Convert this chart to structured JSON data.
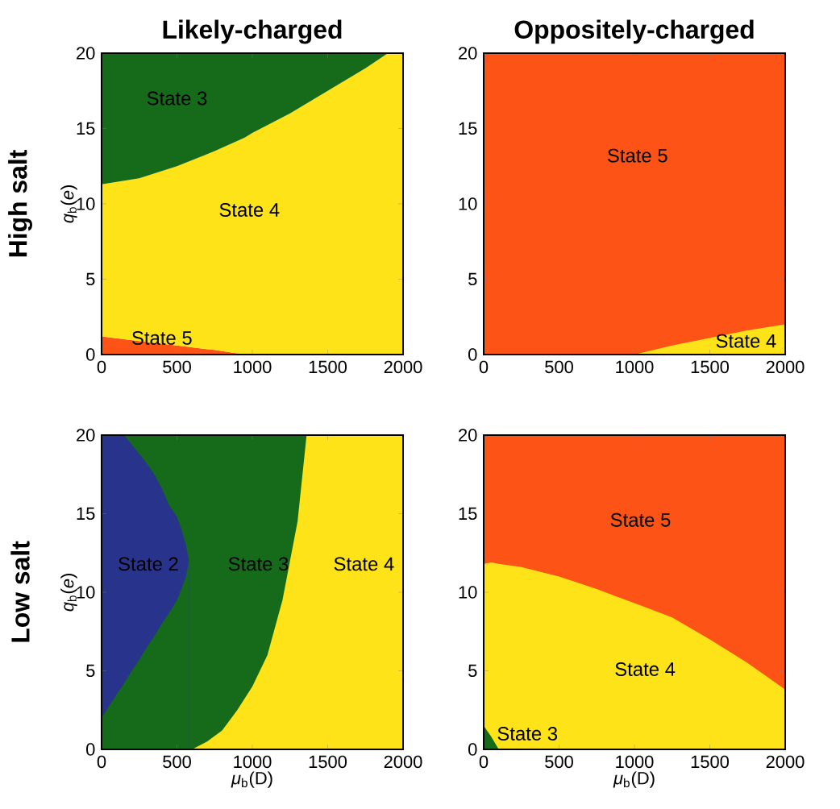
{
  "chart_data": [
    {
      "type": "area",
      "stacked": true,
      "title": "Likely-charged",
      "ylabel": "*q*$_{b}$(*e*)",
      "xlim": [
        0,
        2000
      ],
      "ylim": [
        0,
        20
      ],
      "xticks": [
        0,
        500,
        1000,
        1500,
        2000
      ],
      "yticks": [
        0,
        5,
        10,
        15,
        20
      ],
      "x": [
        0,
        250,
        500,
        750,
        950,
        1000,
        1250,
        1500,
        1750,
        1900,
        2000
      ],
      "series": [
        {
          "color": "#fd5316",
          "values": [
            1.2,
            0.9,
            0.6,
            0.3,
            0,
            0,
            0,
            0,
            0,
            0,
            0
          ]
        },
        {
          "color": "#fee318",
          "values": [
            10.1,
            10.8,
            11.9,
            13.2,
            14.4,
            14.7,
            16,
            17.5,
            19,
            20,
            20
          ]
        },
        {
          "color": "#166b1a",
          "values": [
            8.7,
            8.3,
            7.5,
            6.5,
            5.6,
            5.3,
            4,
            2.5,
            1,
            0,
            0
          ]
        }
      ],
      "annotations": [
        "State 3",
        "State 4",
        "State 5",
        "High salt"
      ]
    },
    {
      "type": "area",
      "title": "Oppositely-charged",
      "xlim": [
        0,
        2000
      ],
      "ylim": [
        0,
        20
      ],
      "xticks": [
        0,
        500,
        1000,
        1500,
        2000
      ],
      "yticks": [
        0,
        5,
        10,
        15,
        20
      ],
      "x": [
        1000,
        1250,
        1500,
        1750,
        2000
      ],
      "bands": [
        {
          "axis": "y",
          "from": 0,
          "to": 20,
          "color": "#fd5316"
        }
      ],
      "series": [
        {
          "color": "#fee318",
          "values": [
            0,
            0.6,
            1.1,
            1.6,
            2
          ]
        }
      ],
      "annotations": [
        "State 5",
        "State 4"
      ]
    },
    {
      "type": "area",
      "xlabel": "*μ*$_{b}$(D)",
      "ylabel": "*q*$_{b}$(*e*)",
      "xlim": [
        0,
        2000
      ],
      "ylim": [
        0,
        20
      ],
      "xticks": [
        0,
        500,
        1000,
        1500,
        2000
      ],
      "yticks": [
        0,
        5,
        10,
        15,
        20
      ],
      "x": [
        0,
        100,
        150,
        200,
        250,
        300,
        350,
        400,
        450,
        500,
        530,
        560,
        580,
        600,
        700,
        800,
        900,
        1000,
        1100,
        1200,
        1300,
        1360,
        1400,
        1500,
        2000
      ],
      "bands": [
        {
          "axis": "y",
          "from": 0,
          "to": 20,
          "color": "#166b1a"
        }
      ],
      "series": [
        {
          "color": "#28348c",
          "values": [
            20,
            20,
            20,
            19.4,
            18.8,
            18.2,
            17.5,
            16.6,
            15.5,
            14.8,
            14,
            13,
            12,
            null,
            null,
            null,
            null,
            null,
            null,
            null,
            null,
            null,
            null,
            null,
            null
          ]
        },
        {
          "color": "#166b1a",
          "values": [
            2,
            3.5,
            4.2,
            5,
            5.7,
            6.5,
            7.2,
            8,
            8.7,
            9.5,
            10.2,
            11,
            12,
            null,
            null,
            null,
            null,
            null,
            null,
            null,
            null,
            null,
            null,
            null,
            null
          ]
        },
        {
          "color": "#fee318",
          "values": [
            null,
            null,
            null,
            null,
            null,
            null,
            null,
            null,
            null,
            null,
            null,
            null,
            null,
            0,
            0.5,
            1.2,
            2.5,
            4,
            6,
            9.5,
            14.5,
            20,
            20,
            20,
            20
          ]
        }
      ],
      "annotations": [
        "State 2",
        "State 3",
        "State 4",
        "Low salt"
      ]
    },
    {
      "type": "area",
      "xlabel": "*μ*$_{b}$(D)",
      "xlim": [
        0,
        2000
      ],
      "ylim": [
        0,
        20
      ],
      "xticks": [
        0,
        500,
        1000,
        1500,
        2000
      ],
      "yticks": [
        0,
        5,
        10,
        15,
        20
      ],
      "x": [
        0,
        50,
        100,
        250,
        500,
        750,
        1000,
        1250,
        1500,
        1750,
        2000
      ],
      "bands": [
        {
          "axis": "y",
          "from": 0,
          "to": 20,
          "color": "#fd5316"
        }
      ],
      "series": [
        {
          "color": "#fee318",
          "values": [
            11.8,
            11.9,
            11.8,
            11.6,
            11,
            10.2,
            9.3,
            8.4,
            7,
            5.5,
            3.8
          ]
        },
        {
          "color": "#166b1a",
          "values": [
            1.5,
            0.8,
            0,
            null,
            null,
            null,
            null,
            null,
            null,
            null,
            null
          ]
        }
      ],
      "annotations": [
        "State 5",
        "State 4",
        "State 3"
      ]
    }
  ]
}
